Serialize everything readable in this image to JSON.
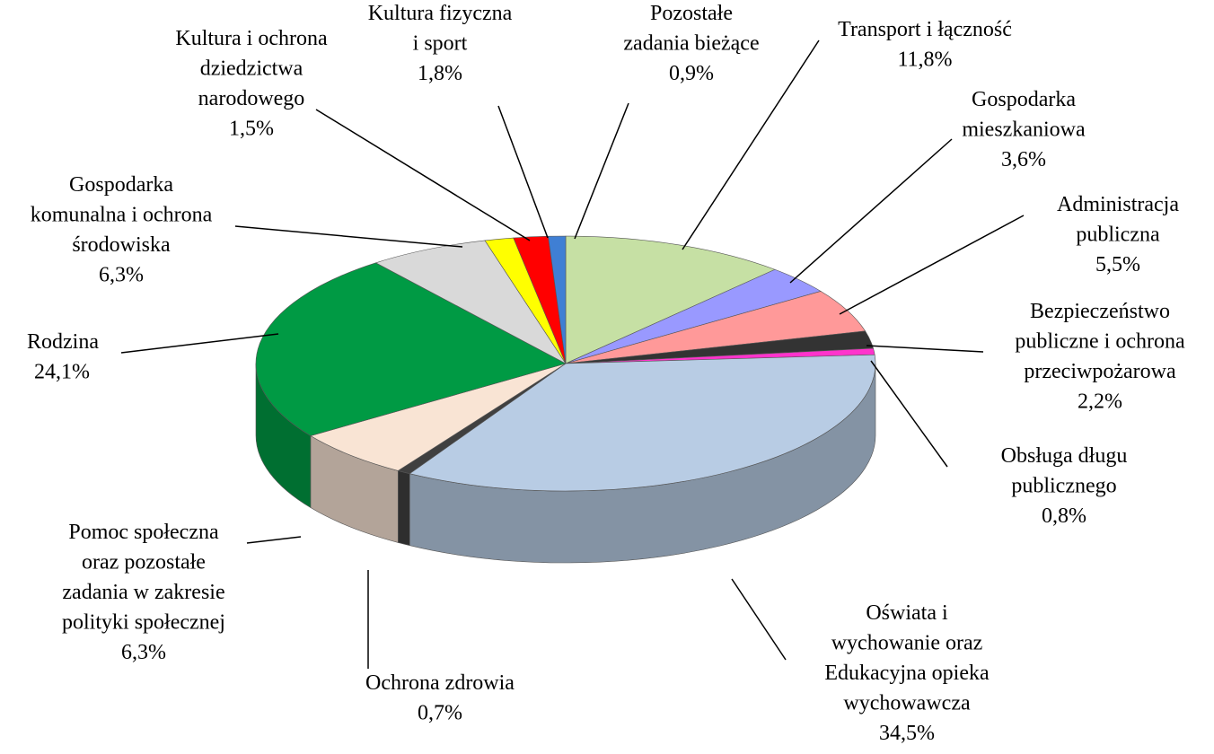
{
  "chart_data": {
    "type": "pie",
    "categories": [
      "Transport i łączność",
      "Gospodarka\nmieszkaniowa",
      "Administracja\npubliczna",
      "Bezpieczeństwo\npubliczne i ochrona\nprzeciwpożarowa",
      "Obsługa długu\npublicznego",
      "Oświata i\nwychowanie oraz\nEdukacyjna opieka\nwychowawcza",
      "Ochrona zdrowia",
      "Pomoc społeczna\noraz pozostałe\nzadania w zakresie\npolityki społecznej",
      "Rodzina",
      "Gospodarka\nkomunalna i ochrona\nśrodowiska",
      "Kultura i ochrona\ndziedzictwa\nnarodowego",
      "Kultura fizyczna\ni sport",
      "Pozostałe\nzadania bieżące"
    ],
    "values": [
      11.8,
      3.6,
      5.5,
      2.2,
      0.8,
      34.5,
      0.7,
      6.3,
      24.1,
      6.3,
      1.5,
      1.8,
      0.9
    ],
    "value_labels": [
      "11,8%",
      "3,6%",
      "5,5%",
      "2,2%",
      "0,8%",
      "34,5%",
      "0,7%",
      "6,3%",
      "24,1%",
      "6,3%",
      "1,5%",
      "1,8%",
      "0,9%"
    ],
    "colors": [
      "#c6e0a4",
      "#9999ff",
      "#ff9999",
      "#333333",
      "#ff33cc",
      "#b8cce4",
      "#404040",
      "#f9e4d4",
      "#009a44",
      "#d9d9d9",
      "#ffff00",
      "#ff0000",
      "#3f7fd4"
    ]
  }
}
